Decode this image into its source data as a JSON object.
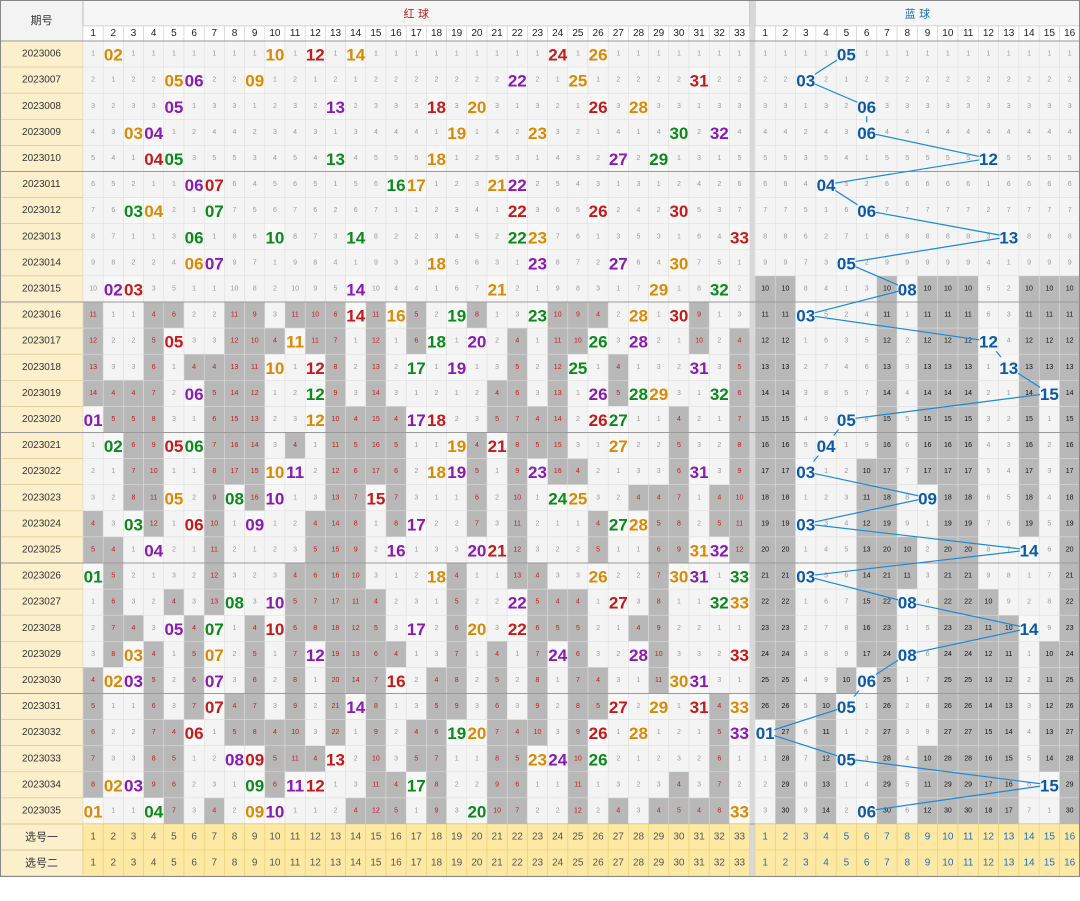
{
  "chart_data": {
    "type": "table",
    "header": {
      "period": "期号",
      "red_title": "红 球",
      "blue_title": "蓝 球"
    },
    "red_numbers": [
      1,
      2,
      3,
      4,
      5,
      6,
      7,
      8,
      9,
      10,
      11,
      12,
      13,
      14,
      15,
      16,
      17,
      18,
      19,
      20,
      21,
      22,
      23,
      24,
      25,
      26,
      27,
      28,
      29,
      30,
      31,
      32,
      33
    ],
    "blue_numbers": [
      1,
      2,
      3,
      4,
      5,
      6,
      7,
      8,
      9,
      10,
      11,
      12,
      13,
      14,
      15,
      16
    ],
    "periods": [
      "2023006",
      "2023007",
      "2023008",
      "2023009",
      "2023010",
      "2023011",
      "2023012",
      "2023013",
      "2023014",
      "2023015",
      "2023016",
      "2023017",
      "2023018",
      "2023019",
      "2023020",
      "2023021",
      "2023022",
      "2023023",
      "2023024",
      "2023025",
      "2023026",
      "2023027",
      "2023028",
      "2023029",
      "2023030",
      "2023031",
      "2023032",
      "2023033",
      "2023034",
      "2023035"
    ],
    "red_draws": [
      [
        2,
        10,
        12,
        14,
        24,
        26
      ],
      [
        5,
        6,
        9,
        22,
        25,
        31
      ],
      [
        5,
        13,
        18,
        20,
        26,
        28
      ],
      [
        3,
        4,
        19,
        23,
        30,
        32
      ],
      [
        4,
        5,
        13,
        18,
        27,
        29
      ],
      [
        6,
        7,
        16,
        17,
        21,
        22
      ],
      [
        3,
        4,
        7,
        22,
        26,
        30
      ],
      [
        6,
        10,
        14,
        22,
        23,
        33
      ],
      [
        6,
        7,
        18,
        23,
        27,
        30
      ],
      [
        2,
        3,
        14,
        21,
        29,
        32
      ],
      [
        14,
        16,
        19,
        23,
        28,
        30
      ],
      [
        5,
        11,
        18,
        20,
        26,
        28
      ],
      [
        10,
        12,
        17,
        19,
        25,
        31
      ],
      [
        6,
        12,
        26,
        28,
        29,
        32
      ],
      [
        1,
        12,
        17,
        18,
        26,
        27
      ],
      [
        2,
        5,
        6,
        19,
        21,
        27
      ],
      [
        10,
        11,
        18,
        19,
        23,
        31
      ],
      [
        5,
        8,
        10,
        15,
        24,
        25
      ],
      [
        3,
        6,
        9,
        17,
        27,
        28
      ],
      [
        4,
        16,
        20,
        21,
        31,
        32
      ],
      [
        1,
        18,
        26,
        30,
        31,
        33
      ],
      [
        8,
        10,
        22,
        27,
        32,
        33
      ],
      [
        5,
        7,
        10,
        17,
        20,
        22
      ],
      [
        3,
        7,
        12,
        24,
        28,
        33
      ],
      [
        2,
        3,
        7,
        16,
        30,
        31
      ],
      [
        7,
        14,
        27,
        29,
        31,
        33
      ],
      [
        6,
        19,
        20,
        26,
        28,
        33
      ],
      [
        8,
        9,
        13,
        23,
        24,
        26
      ],
      [
        2,
        3,
        9,
        11,
        12,
        17
      ],
      [
        1,
        4,
        9,
        10,
        20,
        33
      ]
    ],
    "blue_draws": [
      5,
      3,
      6,
      6,
      12,
      4,
      6,
      13,
      5,
      8,
      3,
      12,
      13,
      15,
      5,
      4,
      3,
      9,
      3,
      14,
      3,
      8,
      14,
      8,
      6,
      5,
      1,
      5,
      15,
      6
    ],
    "selection_rows": [
      "选号一",
      "选号二"
    ],
    "colors": {
      "header_red": "#c41a1a",
      "header_blue": "#1a6fc4",
      "ball_red": "#c41a1a",
      "ball_green": "#0a8a1a",
      "ball_orange": "#d98a00",
      "ball_purple": "#8a1ab0",
      "ball_blue": "#0b5aa8",
      "miss_gray": "#9a9a9a",
      "gray_bar": "#b8b8b8",
      "period_bg": "#fcefcc",
      "select_bg": "#fde9a3",
      "link_line": "#1a8ad8"
    }
  }
}
